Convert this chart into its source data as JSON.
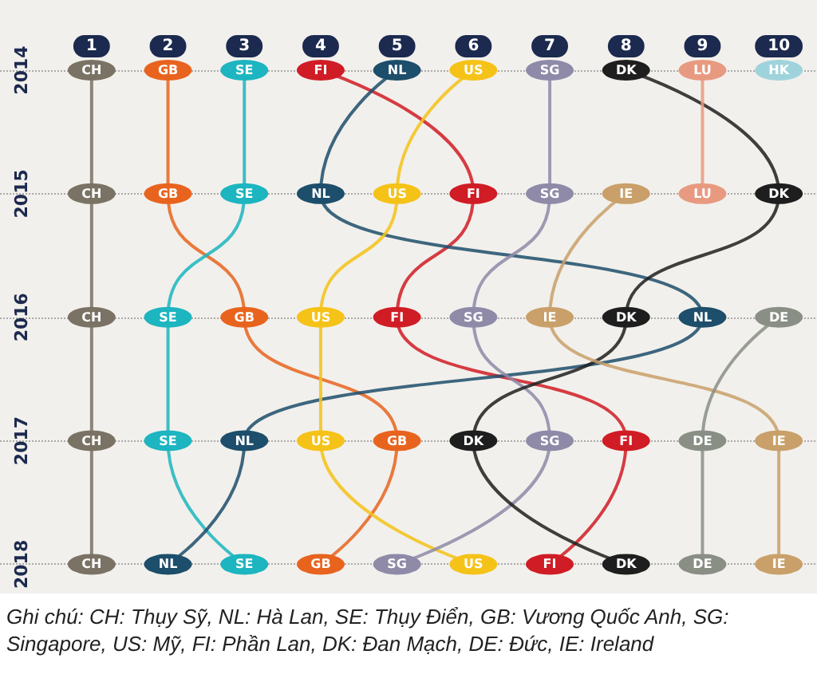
{
  "chart_data": {
    "type": "line",
    "orientation": "horizontal",
    "categories": [
      "2014",
      "2015",
      "2016",
      "2017",
      "2018"
    ],
    "xlim": [
      -0.2,
      10.5
    ],
    "xticks": [
      1,
      2,
      3,
      4,
      5,
      6,
      7,
      8,
      9,
      10
    ],
    "grid": "y",
    "marker": "circle",
    "series": [
      {
        "name": "CH",
        "color": "#7a7264",
        "values": [
          1,
          1,
          1,
          1,
          1
        ]
      },
      {
        "name": "GB",
        "color": "#e8641e",
        "values": [
          2,
          2,
          3,
          5,
          4
        ]
      },
      {
        "name": "SE",
        "color": "#1cb5c0",
        "values": [
          3,
          3,
          2,
          2,
          3
        ]
      },
      {
        "name": "FI",
        "color": "#d01c25",
        "values": [
          4,
          6,
          5,
          8,
          7
        ]
      },
      {
        "name": "NL",
        "color": "#1d4e6b",
        "values": [
          5,
          4,
          9,
          3,
          2
        ]
      },
      {
        "name": "US",
        "color": "#f5c218",
        "values": [
          6,
          5,
          4,
          4,
          6
        ]
      },
      {
        "name": "SG",
        "color": "#8e8aa8",
        "values": [
          7,
          7,
          6,
          7,
          5
        ]
      },
      {
        "name": "DK",
        "color": "#1e1e1e",
        "values": [
          8,
          10,
          8,
          6,
          8
        ]
      },
      {
        "name": "LU",
        "color": "#e89a80",
        "values": [
          9,
          9,
          null,
          null,
          null
        ]
      },
      {
        "name": "HK",
        "color": "#9fd3dc",
        "values": [
          10,
          null,
          null,
          null,
          null
        ]
      },
      {
        "name": "IE",
        "color": "#c9a06a",
        "values": [
          null,
          8,
          7,
          10,
          10
        ]
      },
      {
        "name": "DE",
        "color": "#8a8f86",
        "values": [
          null,
          null,
          10,
          9,
          9
        ]
      }
    ],
    "annotations": [
      "Ghi chú: CH: Thụy Sỹ,  NL: Hà Lan, SE: Thụy Điển,  GB: Vương Quốc Anh, SG: Singapore, US:  Mỹ, FI: Phần Lan, DK: Đan Mạch, DE: Đức, IE: Ireland"
    ]
  }
}
